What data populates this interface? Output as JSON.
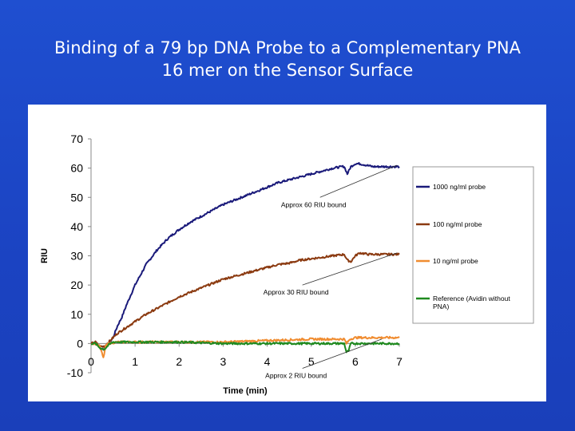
{
  "slide": {
    "title_line1": "Binding of a 79 bp DNA Probe to a Complementary PNA",
    "title_line2": "16 mer on the Sensor Surface"
  },
  "chart_data": {
    "type": "line",
    "title": "Binding of a 79 bp DNA Probe to a Complementary PNA 16 mer on the Sensor Surface",
    "xlabel": "Time (min)",
    "ylabel": "RIU",
    "xlim": [
      0,
      7
    ],
    "ylim": [
      -10,
      70
    ],
    "xticks": [
      "0",
      "1",
      "2",
      "3",
      "4",
      "5",
      "6",
      "7"
    ],
    "yticks": [
      "-10",
      "0",
      "10",
      "20",
      "30",
      "40",
      "50",
      "60",
      "70"
    ],
    "grid": false,
    "legend_position": "right",
    "series": [
      {
        "name": "1000 ng/ml probe",
        "color": "#1a1a7a",
        "points": [
          [
            0,
            0
          ],
          [
            0.1,
            0.5
          ],
          [
            0.2,
            -1.5
          ],
          [
            0.3,
            -2
          ],
          [
            0.4,
            0
          ],
          [
            0.5,
            2
          ],
          [
            0.6,
            6
          ],
          [
            0.7,
            9
          ],
          [
            0.8,
            13
          ],
          [
            1.0,
            20
          ],
          [
            1.25,
            27
          ],
          [
            1.5,
            32
          ],
          [
            1.75,
            36
          ],
          [
            2.0,
            39
          ],
          [
            2.25,
            41.5
          ],
          [
            2.5,
            43.5
          ],
          [
            2.75,
            45.5
          ],
          [
            3.0,
            47.5
          ],
          [
            3.25,
            49
          ],
          [
            3.5,
            50.5
          ],
          [
            3.75,
            52
          ],
          [
            4.0,
            53.5
          ],
          [
            4.25,
            55
          ],
          [
            4.5,
            56
          ],
          [
            4.75,
            57
          ],
          [
            5.0,
            58
          ],
          [
            5.25,
            59
          ],
          [
            5.5,
            60
          ],
          [
            5.7,
            60.5
          ],
          [
            5.75,
            60.5
          ],
          [
            5.82,
            58
          ],
          [
            5.9,
            60.5
          ],
          [
            6.0,
            61.5
          ],
          [
            6.1,
            61.5
          ],
          [
            6.25,
            61
          ],
          [
            6.4,
            60.5
          ],
          [
            6.55,
            60.5
          ],
          [
            7.0,
            60.5
          ]
        ]
      },
      {
        "name": "100 ng/ml probe",
        "color": "#8b3a10",
        "points": [
          [
            0,
            0
          ],
          [
            0.1,
            0.5
          ],
          [
            0.2,
            -1
          ],
          [
            0.3,
            -1
          ],
          [
            0.4,
            0.5
          ],
          [
            0.5,
            2
          ],
          [
            0.6,
            3.5
          ],
          [
            0.8,
            5.5
          ],
          [
            1.0,
            7.5
          ],
          [
            1.25,
            10
          ],
          [
            1.5,
            12
          ],
          [
            1.75,
            14
          ],
          [
            2.0,
            16
          ],
          [
            2.25,
            17.5
          ],
          [
            2.5,
            19
          ],
          [
            2.75,
            20.5
          ],
          [
            3.0,
            22
          ],
          [
            3.25,
            23
          ],
          [
            3.5,
            24
          ],
          [
            3.75,
            25
          ],
          [
            4.0,
            26
          ],
          [
            4.25,
            27
          ],
          [
            4.5,
            27.5
          ],
          [
            4.75,
            28.5
          ],
          [
            5.0,
            29
          ],
          [
            5.25,
            29.5
          ],
          [
            5.5,
            30
          ],
          [
            5.75,
            30.5
          ],
          [
            5.82,
            28.5
          ],
          [
            5.9,
            28
          ],
          [
            6.0,
            30
          ],
          [
            6.1,
            31
          ],
          [
            6.3,
            30.5
          ],
          [
            6.5,
            30.5
          ],
          [
            7.0,
            30.5
          ]
        ]
      },
      {
        "name": "10 ng/ml probe",
        "color": "#f08c30",
        "points": [
          [
            0,
            0
          ],
          [
            0.1,
            0
          ],
          [
            0.2,
            -1
          ],
          [
            0.28,
            -5
          ],
          [
            0.33,
            -1
          ],
          [
            0.4,
            0
          ],
          [
            0.6,
            0.5
          ],
          [
            1.0,
            0.5
          ],
          [
            2.0,
            0.5
          ],
          [
            3.0,
            0.5
          ],
          [
            4.0,
            1
          ],
          [
            5.0,
            1.5
          ],
          [
            5.7,
            1.5
          ],
          [
            5.75,
            1.5
          ],
          [
            5.8,
            0
          ],
          [
            5.88,
            1.5
          ],
          [
            6.0,
            2
          ],
          [
            7.0,
            2
          ]
        ]
      },
      {
        "name": "Reference (Avidin without PNA)",
        "color": "#1f8a1f",
        "points": [
          [
            0,
            0
          ],
          [
            0.1,
            0
          ],
          [
            0.2,
            -1.5
          ],
          [
            0.3,
            -2
          ],
          [
            0.4,
            -0.5
          ],
          [
            0.5,
            0.5
          ],
          [
            1.0,
            0.5
          ],
          [
            2.0,
            0.5
          ],
          [
            3.0,
            0
          ],
          [
            4.0,
            0
          ],
          [
            5.0,
            0
          ],
          [
            5.75,
            0
          ],
          [
            5.8,
            -3
          ],
          [
            5.85,
            -2.5
          ],
          [
            5.9,
            0
          ],
          [
            6.0,
            0
          ],
          [
            7.0,
            0
          ]
        ]
      }
    ],
    "annotations": [
      {
        "text": "Approx 60 RIU bound",
        "from": [
          5.2,
          50
        ],
        "to": [
          6.95,
          61
        ]
      },
      {
        "text": "Approx 30 RIU bound",
        "from": [
          4.8,
          20
        ],
        "to": [
          6.95,
          31
        ]
      },
      {
        "text": "Approx 2 RIU bound",
        "from": [
          4.8,
          -8.5
        ],
        "to": [
          6.6,
          1.5
        ]
      }
    ]
  }
}
